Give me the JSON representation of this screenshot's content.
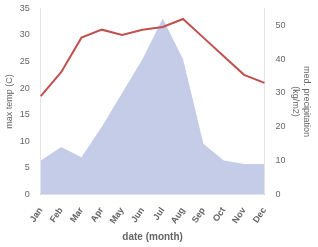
{
  "chart_data": {
    "type": "line",
    "categories": [
      "Jan",
      "Feb",
      "Mar",
      "Apr",
      "May",
      "Jun",
      "Jul",
      "Aug",
      "Sep",
      "Oct",
      "Nov",
      "Dec"
    ],
    "series": [
      {
        "type": "area",
        "axis": "y2",
        "color": "#c5cce8",
        "values": [
          10,
          14,
          11,
          20,
          30,
          40,
          52,
          40,
          15,
          10,
          9,
          9
        ]
      },
      {
        "type": "line",
        "axis": "y",
        "color": "#c0504d",
        "values": [
          18.5,
          23.0,
          29.5,
          31.0,
          30.0,
          31.0,
          31.5,
          33.0,
          29.5,
          26.0,
          22.5,
          21.0
        ]
      }
    ],
    "xlabel": "date (month)",
    "ylabel": "max temp (C)",
    "y2label": "med. precipitation\n(kg/m2)",
    "ylim": [
      0,
      35
    ],
    "yticks": [
      0,
      5,
      10,
      15,
      20,
      25,
      30,
      35
    ],
    "y2lim": [
      0,
      55
    ],
    "y2ticks": [
      0,
      10,
      20,
      30,
      40,
      50
    ],
    "grid": false,
    "legend": false
  }
}
